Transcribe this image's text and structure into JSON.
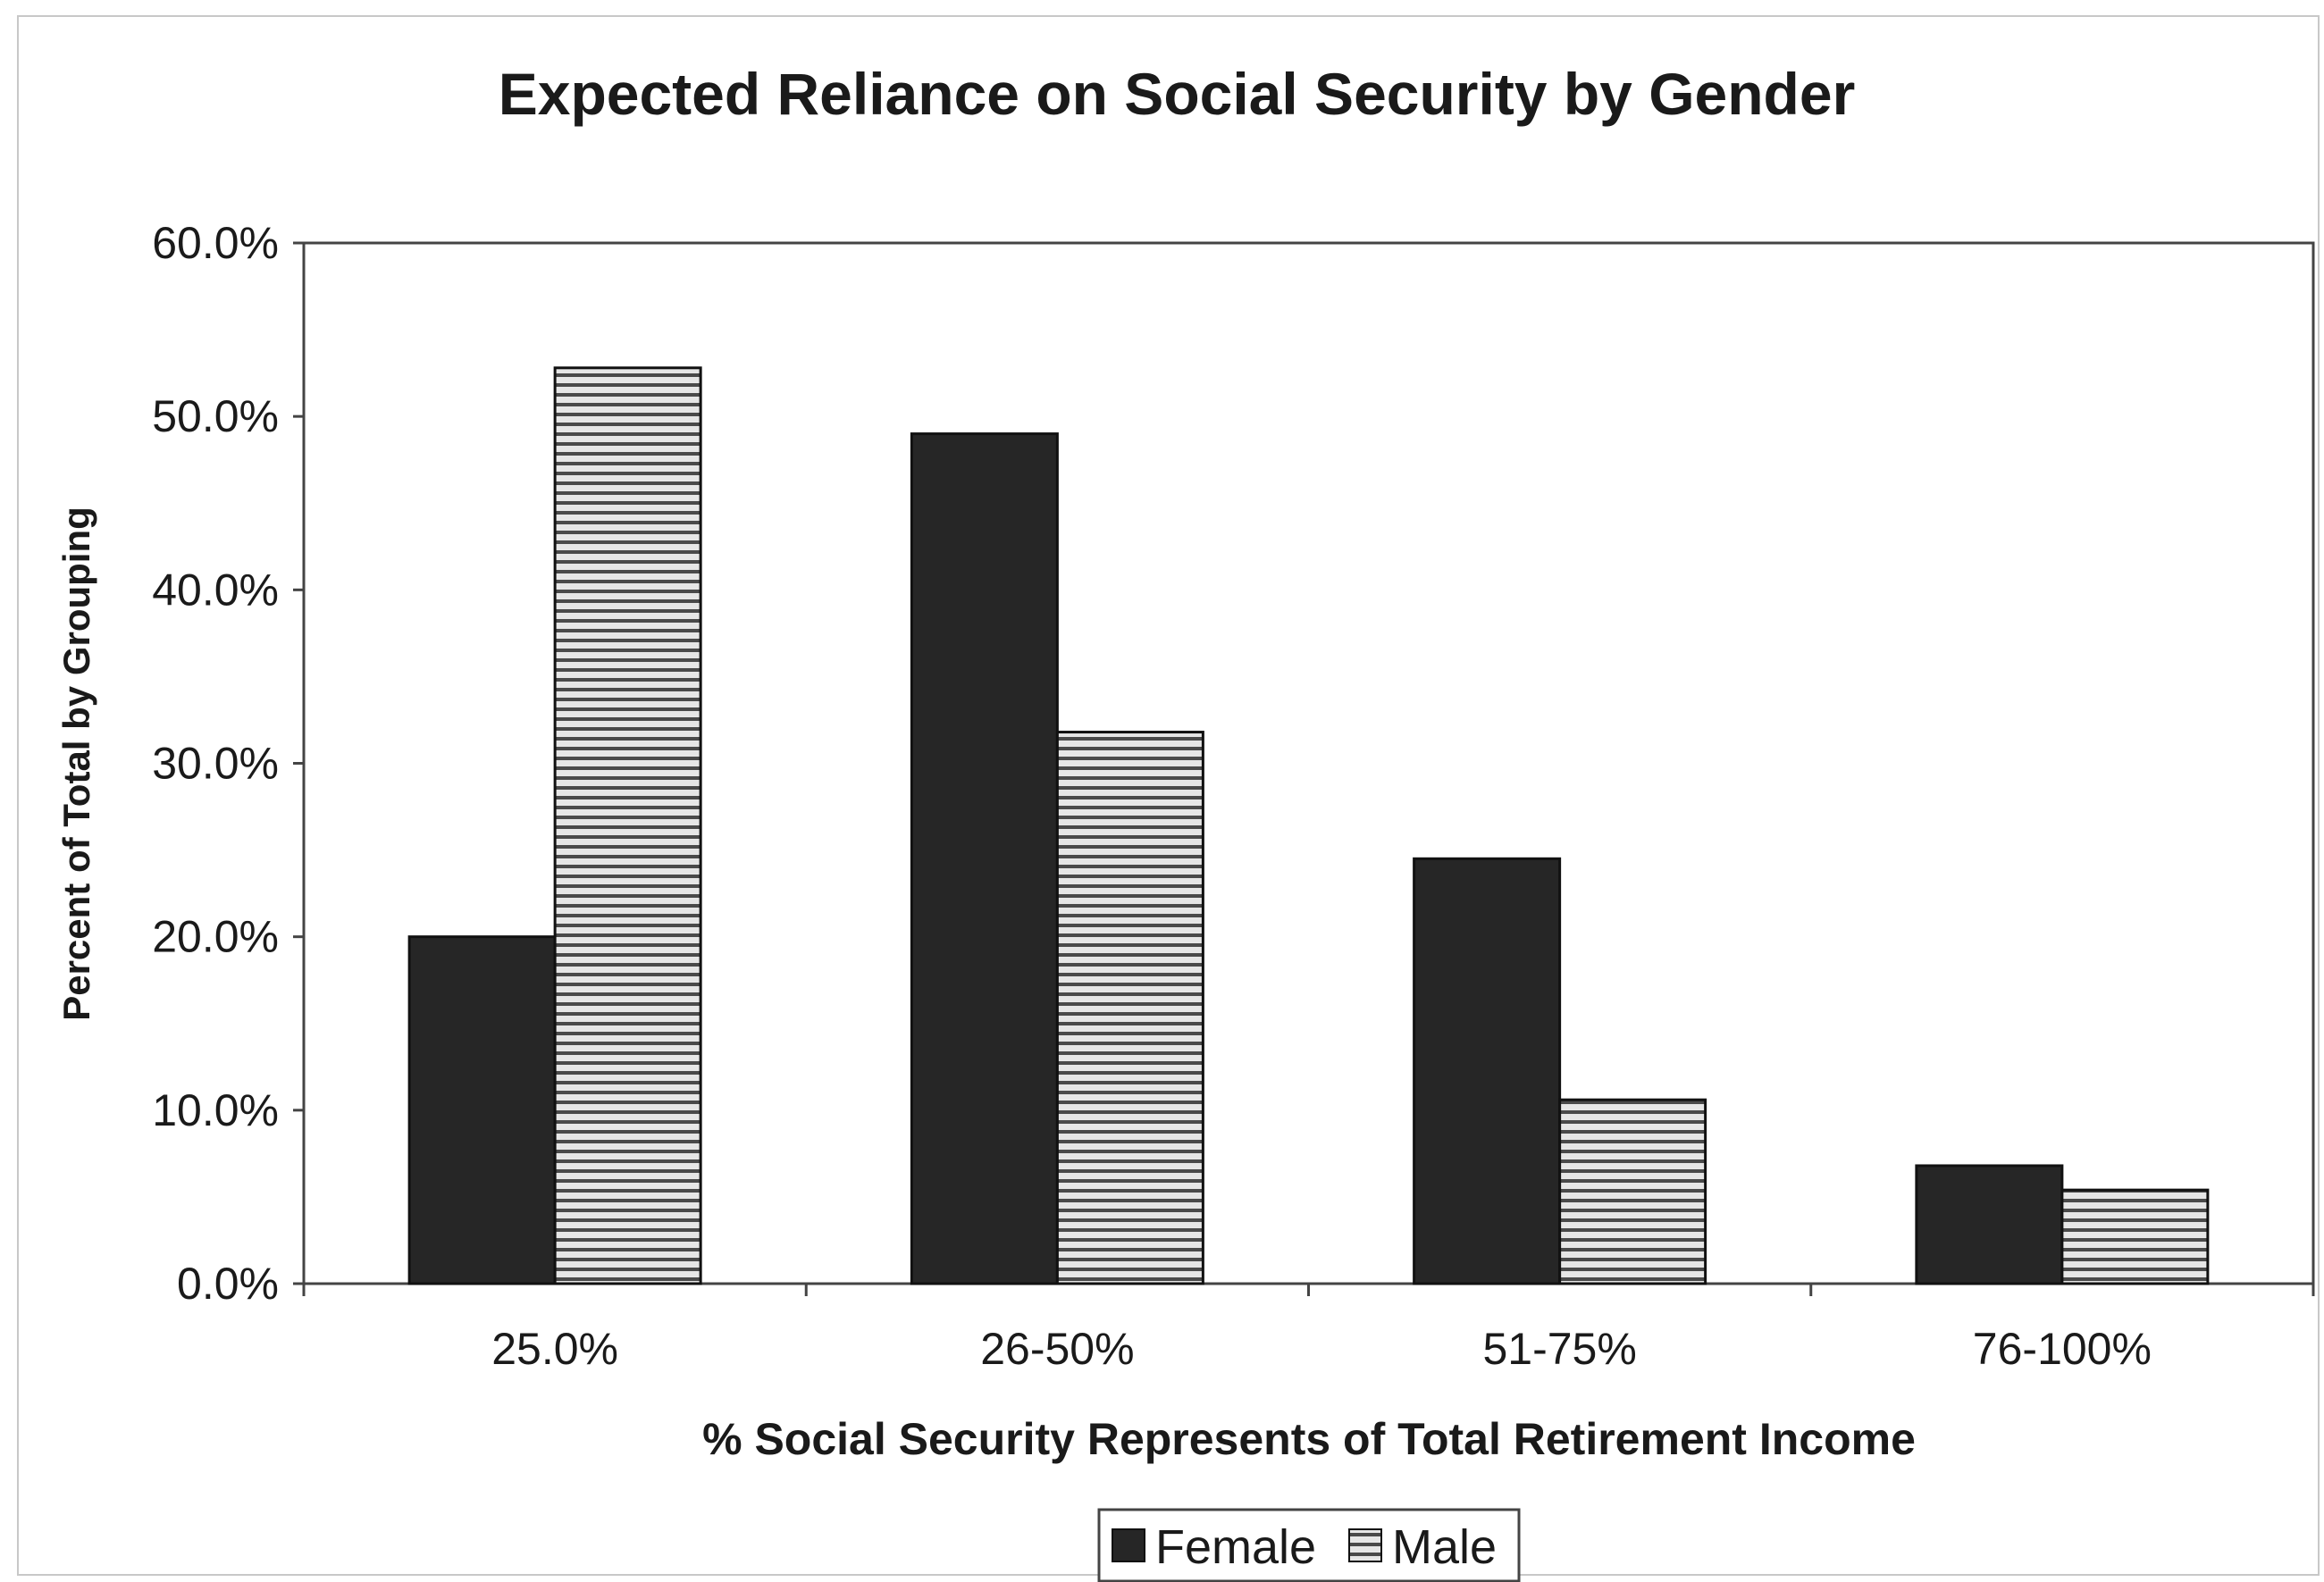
{
  "colors": {
    "female": "#262626",
    "male_stripe_dark": "#4a4a4a",
    "male_stripe_light": "#e6e6e6",
    "axis": "#444444",
    "frame": "#c8c8c8"
  },
  "legend": {
    "female_label": "Female",
    "male_label": "Male"
  },
  "chart_data": {
    "type": "bar",
    "title": "Expected Reliance on Social Security by Gender",
    "xlabel": "% Social Security Represents of Total Retirement Income",
    "ylabel": "Percent of Total by Grouping",
    "categories": [
      "25.0%",
      "26-50%",
      "51-75%",
      "76-100%"
    ],
    "series": [
      {
        "name": "Female",
        "values": [
          20.0,
          49.0,
          24.5,
          6.8
        ]
      },
      {
        "name": "Male",
        "values": [
          52.8,
          31.8,
          10.6,
          5.4
        ]
      }
    ],
    "ylim": [
      0,
      60
    ],
    "yticks": [
      0,
      10,
      20,
      30,
      40,
      50,
      60
    ],
    "ytick_labels": [
      "0.0%",
      "10.0%",
      "20.0%",
      "30.0%",
      "40.0%",
      "50.0%",
      "60.0%"
    ],
    "grid": false,
    "legend_position": "bottom-center"
  }
}
